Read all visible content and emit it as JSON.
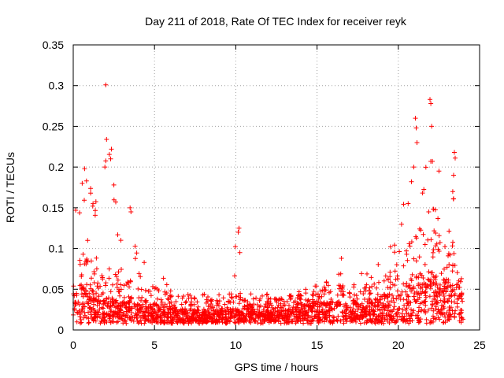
{
  "chart_data": {
    "type": "scatter",
    "title": "Day 211 of 2018, Rate Of TEC Index for receiver reyk",
    "xlabel": "GPS time / hours",
    "ylabel": "ROTI / TECUs",
    "xlim": [
      0,
      25
    ],
    "ylim": [
      0,
      0.35
    ],
    "grid": true,
    "marker": "+",
    "color": "#ff0000",
    "x_ticks": [
      {
        "value": 0,
        "label": "0"
      },
      {
        "value": 5,
        "label": "5"
      },
      {
        "value": 10,
        "label": "10"
      },
      {
        "value": 15,
        "label": "15"
      },
      {
        "value": 20,
        "label": "20"
      },
      {
        "value": 25,
        "label": "25"
      }
    ],
    "y_ticks": [
      {
        "value": 0,
        "label": "0"
      },
      {
        "value": 0.05,
        "label": "0.05"
      },
      {
        "value": 0.1,
        "label": "0.1"
      },
      {
        "value": 0.15,
        "label": "0.15"
      },
      {
        "value": 0.2,
        "label": "0.2"
      },
      {
        "value": 0.25,
        "label": "0.25"
      },
      {
        "value": 0.3,
        "label": "0.3"
      },
      {
        "value": 0.35,
        "label": "0.35"
      }
    ],
    "envelope": {
      "hours": [
        0,
        0.5,
        1,
        1.5,
        2,
        2.5,
        3,
        3.5,
        4,
        4.5,
        5,
        5.5,
        6,
        6.5,
        7,
        7.5,
        8,
        8.5,
        9,
        9.5,
        10,
        10.5,
        11,
        11.5,
        12,
        12.5,
        13,
        13.5,
        14,
        14.5,
        15,
        15.5,
        16,
        16.5,
        17,
        17.5,
        18,
        18.5,
        19,
        19.5,
        20,
        20.5,
        21,
        21.5,
        22,
        22.5,
        23,
        23.5,
        24
      ],
      "typical": [
        0.07,
        0.09,
        0.08,
        0.07,
        0.06,
        0.06,
        0.05,
        0.05,
        0.045,
        0.04,
        0.045,
        0.04,
        0.035,
        0.03,
        0.035,
        0.03,
        0.028,
        0.028,
        0.03,
        0.03,
        0.035,
        0.035,
        0.035,
        0.03,
        0.03,
        0.028,
        0.03,
        0.035,
        0.04,
        0.045,
        0.045,
        0.05,
        0.05,
        0.045,
        0.045,
        0.045,
        0.05,
        0.055,
        0.06,
        0.065,
        0.075,
        0.09,
        0.11,
        0.12,
        0.12,
        0.1,
        0.1,
        0.09,
        0.08
      ],
      "peak": [
        0.15,
        0.19,
        0.18,
        0.16,
        0.23,
        0.21,
        0.13,
        0.15,
        0.1,
        0.085,
        0.07,
        0.065,
        0.055,
        0.045,
        0.07,
        0.05,
        0.045,
        0.04,
        0.05,
        0.045,
        0.125,
        0.06,
        0.05,
        0.045,
        0.045,
        0.04,
        0.045,
        0.05,
        0.055,
        0.06,
        0.065,
        0.065,
        0.06,
        0.085,
        0.07,
        0.065,
        0.085,
        0.09,
        0.1,
        0.12,
        0.14,
        0.19,
        0.26,
        0.23,
        0.28,
        0.2,
        0.22,
        0.16,
        0.13
      ]
    },
    "outliers": [
      [
        2.0,
        0.301
      ],
      [
        2.05,
        0.234
      ],
      [
        2.35,
        0.222
      ],
      [
        2.3,
        0.21
      ],
      [
        1.95,
        0.2
      ],
      [
        2.5,
        0.178
      ],
      [
        3.5,
        0.15
      ],
      [
        3.55,
        0.145
      ],
      [
        1.2,
        0.152
      ],
      [
        0.7,
        0.198
      ],
      [
        0.55,
        0.18
      ],
      [
        0.15,
        0.147
      ],
      [
        10.2,
        0.125
      ],
      [
        10.15,
        0.12
      ],
      [
        10.25,
        0.095
      ],
      [
        16.5,
        0.088
      ],
      [
        21.05,
        0.26
      ],
      [
        21.1,
        0.248
      ],
      [
        21.15,
        0.23
      ],
      [
        20.95,
        0.2
      ],
      [
        21.95,
        0.283
      ],
      [
        22.0,
        0.278
      ],
      [
        22.05,
        0.25
      ],
      [
        22.0,
        0.207
      ],
      [
        22.1,
        0.207
      ],
      [
        23.45,
        0.218
      ],
      [
        23.5,
        0.211
      ],
      [
        23.4,
        0.19
      ],
      [
        23.35,
        0.17
      ],
      [
        22.5,
        0.195
      ]
    ],
    "num_points": 2200
  }
}
